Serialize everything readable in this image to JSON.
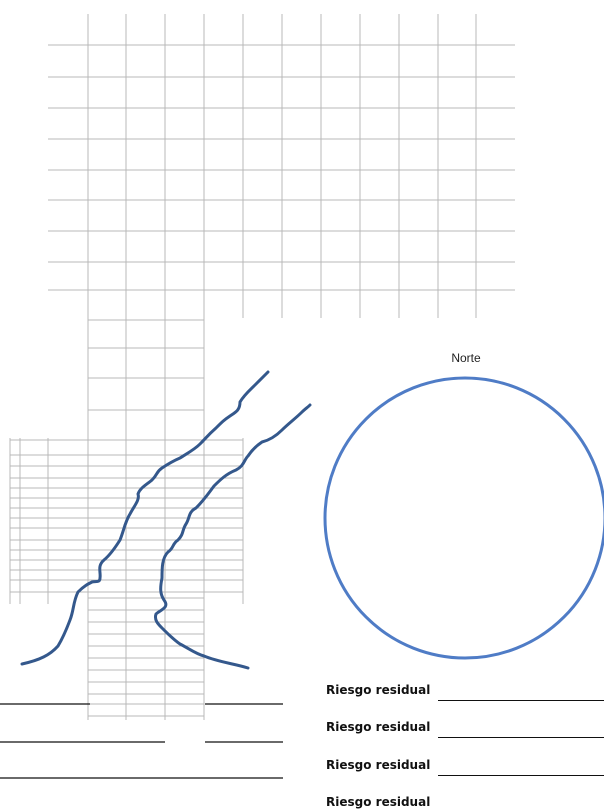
{
  "compass": {
    "label": "Norte"
  },
  "residual": {
    "label": "Riesgo residual",
    "count": 4
  },
  "colors": {
    "grid": "#b8b8b8",
    "river": "#34588c",
    "circle": "#4f7cc6",
    "ink": "#111111"
  }
}
